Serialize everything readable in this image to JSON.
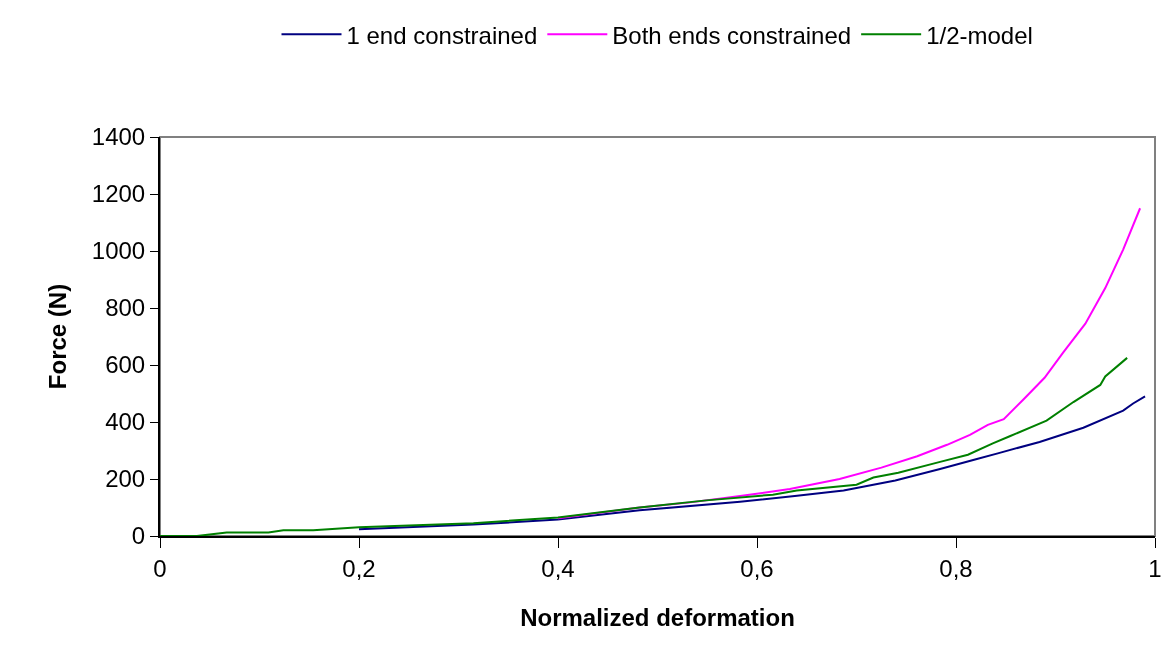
{
  "chart_data": {
    "type": "line",
    "xlabel": "Normalized deformation",
    "ylabel": "Force (N)",
    "xlim": [
      0,
      1
    ],
    "ylim": [
      0,
      1400
    ],
    "xticks": [
      0,
      {
        "value": 0.2,
        "label": "0,2"
      },
      {
        "value": 0.4,
        "label": "0,4"
      },
      {
        "value": 0.6,
        "label": "0,6"
      },
      {
        "value": 0.8,
        "label": "0,8"
      },
      1
    ],
    "yticks": [
      0,
      200,
      400,
      600,
      800,
      1000,
      1200,
      1400
    ],
    "grid": false,
    "legend": "top",
    "marker": "none",
    "line_style": "solid",
    "series": [
      {
        "name": "1 end constrained",
        "color": "#000080",
        "x": [
          0.2,
          0.315,
          0.4,
          0.482,
          0.583,
          0.638,
          0.687,
          0.739,
          0.784,
          0.821,
          0.842,
          0.884,
          0.928,
          0.968,
          0.978,
          0.99
        ],
        "values": [
          24,
          40,
          58,
          90,
          120,
          140,
          160,
          195,
          235,
          270,
          290,
          330,
          380,
          440,
          465,
          490
        ]
      },
      {
        "name": "Both ends constrained",
        "color": "#ff00ff",
        "x": [
          0.4,
          0.482,
          0.533,
          0.583,
          0.633,
          0.683,
          0.725,
          0.761,
          0.791,
          0.814,
          0.832,
          0.848,
          0.868,
          0.889,
          0.908,
          0.93,
          0.95,
          0.968,
          0.985
        ],
        "values": [
          62,
          100,
          118,
          140,
          165,
          200,
          240,
          280,
          320,
          355,
          390,
          410,
          480,
          555,
          645,
          745,
          870,
          1005,
          1150
        ]
      },
      {
        "name": "1/2-model",
        "color": "#008000",
        "x": [
          0,
          0.037,
          0.067,
          0.109,
          0.124,
          0.154,
          0.2,
          0.315,
          0.4,
          0.482,
          0.549,
          0.616,
          0.64,
          0.7,
          0.717,
          0.742,
          0.784,
          0.812,
          0.837,
          0.854,
          0.891,
          0.918,
          0.945,
          0.95,
          0.972
        ],
        "values": [
          0,
          0,
          12,
          12,
          20,
          20,
          31,
          45,
          65,
          100,
          125,
          145,
          160,
          180,
          205,
          222,
          260,
          285,
          325,
          350,
          405,
          470,
          530,
          560,
          625
        ]
      }
    ]
  }
}
